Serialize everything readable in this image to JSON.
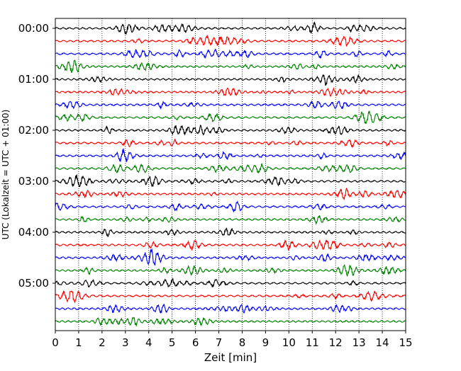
{
  "chart_data": {
    "type": "line",
    "xlabel": "Zeit  [min]",
    "ylabel": "UTC (Lokalzeit = UTC + 01:00)",
    "xlim": [
      0,
      15
    ],
    "x_ticks": [
      0,
      1,
      2,
      3,
      4,
      5,
      6,
      7,
      8,
      9,
      10,
      11,
      12,
      13,
      14,
      15
    ],
    "x_tick_labels": [
      "0",
      "1",
      "2",
      "3",
      "4",
      "5",
      "6",
      "7",
      "8",
      "9",
      "10",
      "11",
      "12",
      "13",
      "14",
      "15"
    ],
    "grid": "vertical dotted lines at every minute",
    "traces_per_hour": 4,
    "trace_minutes": 15,
    "trace_colors": [
      "#000000",
      "#ff0000",
      "#0000ff",
      "#008000"
    ],
    "y_ticks": [
      {
        "label": "00:00",
        "trace_index": 0
      },
      {
        "label": "01:00",
        "trace_index": 4
      },
      {
        "label": "02:00",
        "trace_index": 8
      },
      {
        "label": "03:00",
        "trace_index": 12
      },
      {
        "label": "04:00",
        "trace_index": 16
      },
      {
        "label": "05:00",
        "trace_index": 20
      }
    ],
    "series": [
      {
        "start": "00:00",
        "color": "#000000"
      },
      {
        "start": "00:15",
        "color": "#ff0000"
      },
      {
        "start": "00:30",
        "color": "#0000ff"
      },
      {
        "start": "00:45",
        "color": "#008000"
      },
      {
        "start": "01:00",
        "color": "#000000"
      },
      {
        "start": "01:15",
        "color": "#ff0000"
      },
      {
        "start": "01:30",
        "color": "#0000ff"
      },
      {
        "start": "01:45",
        "color": "#008000"
      },
      {
        "start": "02:00",
        "color": "#000000"
      },
      {
        "start": "02:15",
        "color": "#ff0000"
      },
      {
        "start": "02:30",
        "color": "#0000ff"
      },
      {
        "start": "02:45",
        "color": "#008000"
      },
      {
        "start": "03:00",
        "color": "#000000"
      },
      {
        "start": "03:15",
        "color": "#ff0000"
      },
      {
        "start": "03:30",
        "color": "#0000ff"
      },
      {
        "start": "03:45",
        "color": "#008000"
      },
      {
        "start": "04:00",
        "color": "#000000"
      },
      {
        "start": "04:15",
        "color": "#ff0000"
      },
      {
        "start": "04:30",
        "color": "#0000ff"
      },
      {
        "start": "04:45",
        "color": "#008000"
      },
      {
        "start": "05:00",
        "color": "#000000"
      },
      {
        "start": "05:15",
        "color": "#ff0000"
      },
      {
        "start": "05:30",
        "color": "#0000ff"
      },
      {
        "start": "05:45",
        "color": "#008000"
      }
    ]
  }
}
